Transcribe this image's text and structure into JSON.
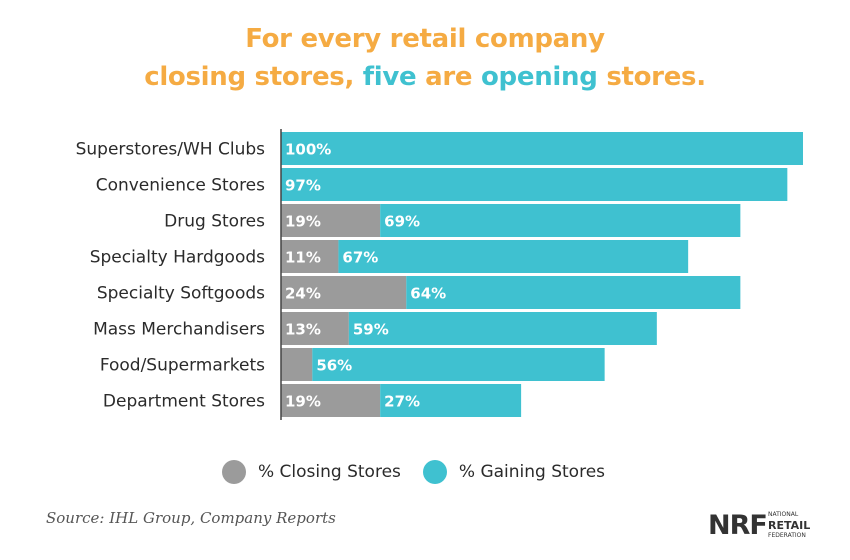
{
  "title": {
    "line1": "For every retail company",
    "line2_part1": "closing stores, ",
    "line2_part2": "five",
    "line2_part3": " are ",
    "line2_part4": "opening",
    "line2_part5": " stores."
  },
  "colors": {
    "closing": "#9b9b9b",
    "gaining": "#3fc1d0",
    "title_orange": "#f5ab43",
    "title_teal": "#3fc1d0"
  },
  "chart_data": {
    "type": "bar",
    "orientation": "horizontal",
    "stacked": true,
    "categories": [
      "Superstores/WH Clubs",
      "Convenience Stores",
      "Drug Stores",
      "Specialty Hardgoods",
      "Specialty Softgoods",
      "Mass Merchandisers",
      "Food/Supermarkets",
      "Department Stores"
    ],
    "series": [
      {
        "name": "% Closing Stores",
        "values": [
          0,
          0,
          19,
          11,
          24,
          13,
          6,
          19
        ],
        "labels": [
          "",
          "",
          "19%",
          "11%",
          "24%",
          "13%",
          "",
          "19%"
        ]
      },
      {
        "name": "% Gaining Stores",
        "values": [
          100,
          97,
          69,
          67,
          64,
          59,
          56,
          27
        ],
        "labels": [
          "100%",
          "97%",
          "69%",
          "67%",
          "64%",
          "59%",
          "56%",
          "27%"
        ]
      }
    ],
    "xlim": [
      0,
      100
    ],
    "legend_position": "bottom"
  },
  "legend": {
    "closing": "% Closing Stores",
    "gaining": "% Gaining Stores"
  },
  "source": "Source: IHL Group, Company Reports",
  "logo": {
    "main": "NRF",
    "line1": "NATIONAL",
    "line2": "RETAIL",
    "line3": "FEDERATION"
  }
}
